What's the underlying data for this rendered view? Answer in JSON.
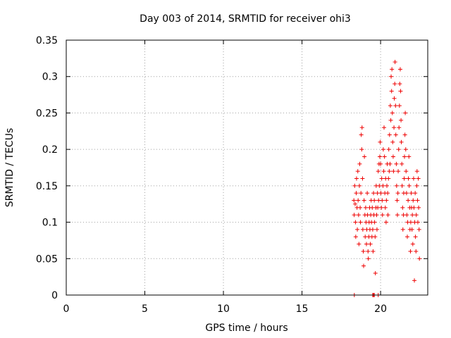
{
  "chart_data": {
    "type": "scatter",
    "title": "Day 003 of 2014, SRMTID for receiver ohi3",
    "xlabel": "GPS time / hours",
    "ylabel": "SRMTID / TECUs",
    "xlim": [
      0,
      23
    ],
    "ylim": [
      0,
      0.35
    ],
    "xticks": [
      0,
      5,
      10,
      15,
      20
    ],
    "xtick_labels": [
      "0",
      "5",
      "10",
      "15",
      "20"
    ],
    "yticks": [
      0,
      0.05,
      0.1,
      0.15,
      0.2,
      0.25,
      0.3,
      0.35
    ],
    "ytick_labels": [
      "0",
      "0.05",
      "0.1",
      "0.15",
      "0.2",
      "0.25",
      "0.3",
      "0.35"
    ],
    "grid": true,
    "marker": "+",
    "color": "#ee0000",
    "series": [
      {
        "name": "SRMTID",
        "points": [
          [
            18.3,
            0.13
          ],
          [
            18.32,
            0.11
          ],
          [
            18.35,
            0.15
          ],
          [
            18.38,
            0.125
          ],
          [
            18.4,
            0.1
          ],
          [
            18.42,
            0.08
          ],
          [
            18.45,
            0.14
          ],
          [
            18.47,
            0.16
          ],
          [
            18.5,
            0.12
          ],
          [
            18.52,
            0.09
          ],
          [
            18.55,
            0.17
          ],
          [
            18.57,
            0.13
          ],
          [
            18.6,
            0.11
          ],
          [
            18.62,
            0.07
          ],
          [
            18.65,
            0.15
          ],
          [
            18.67,
            0.18
          ],
          [
            18.7,
            0.12
          ],
          [
            18.72,
            0.1
          ],
          [
            18.75,
            0.14
          ],
          [
            18.77,
            0.22
          ],
          [
            18.8,
            0.2
          ],
          [
            18.82,
            0.23
          ],
          [
            18.85,
            0.16
          ],
          [
            18.87,
            0.09
          ],
          [
            18.9,
            0.06
          ],
          [
            18.92,
            0.04
          ],
          [
            18.95,
            0.13
          ],
          [
            18.97,
            0.19
          ],
          [
            19.0,
            0.11
          ],
          [
            19.02,
            0.08
          ],
          [
            19.05,
            0.12
          ],
          [
            19.07,
            0.1
          ],
          [
            19.1,
            0.07
          ],
          [
            19.12,
            0.09
          ],
          [
            19.15,
            0.14
          ],
          [
            19.17,
            0.11
          ],
          [
            19.2,
            0.06
          ],
          [
            19.22,
            0.05
          ],
          [
            19.25,
            0.08
          ],
          [
            19.27,
            0.1
          ],
          [
            19.3,
            0.12
          ],
          [
            19.32,
            0.09
          ],
          [
            19.35,
            0.07
          ],
          [
            19.37,
            0.11
          ],
          [
            19.4,
            0.13
          ],
          [
            19.42,
            0.1
          ],
          [
            19.45,
            0.08
          ],
          [
            19.47,
            0.12
          ],
          [
            19.5,
            0.09
          ],
          [
            19.52,
            0.06
          ],
          [
            19.55,
            0.14
          ],
          [
            19.57,
            0.11
          ],
          [
            19.6,
            0.13
          ],
          [
            19.62,
            0.1
          ],
          [
            19.65,
            0.08
          ],
          [
            19.67,
            0.03
          ],
          [
            19.7,
            0.12
          ],
          [
            19.72,
            0.15
          ],
          [
            19.75,
            0.11
          ],
          [
            19.77,
            0.09
          ],
          [
            19.8,
            0.14
          ],
          [
            19.82,
            0.12
          ],
          [
            19.85,
            0.17
          ],
          [
            19.87,
            0.13
          ],
          [
            19.9,
            0.18
          ],
          [
            19.92,
            0.15
          ],
          [
            19.95,
            0.19
          ],
          [
            19.97,
            0.21
          ],
          [
            20.0,
            0.18
          ],
          [
            20.02,
            0.14
          ],
          [
            20.05,
            0.12
          ],
          [
            20.07,
            0.16
          ],
          [
            20.1,
            0.13
          ],
          [
            20.12,
            0.11
          ],
          [
            20.15,
            0.15
          ],
          [
            20.17,
            0.2
          ],
          [
            20.2,
            0.17
          ],
          [
            20.22,
            0.23
          ],
          [
            20.25,
            0.19
          ],
          [
            20.27,
            0.14
          ],
          [
            20.3,
            0.12
          ],
          [
            20.32,
            0.16
          ],
          [
            20.35,
            0.1
          ],
          [
            20.37,
            0.13
          ],
          [
            20.4,
            0.15
          ],
          [
            20.42,
            0.18
          ],
          [
            20.45,
            0.14
          ],
          [
            20.47,
            0.11
          ],
          [
            20.5,
            0.16
          ],
          [
            20.52,
            0.2
          ],
          [
            20.55,
            0.17
          ],
          [
            20.57,
            0.22
          ],
          [
            20.6,
            0.18
          ],
          [
            20.62,
            0.26
          ],
          [
            20.65,
            0.24
          ],
          [
            20.67,
            0.3
          ],
          [
            20.7,
            0.28
          ],
          [
            20.72,
            0.31
          ],
          [
            20.75,
            0.25
          ],
          [
            20.77,
            0.21
          ],
          [
            20.8,
            0.19
          ],
          [
            20.82,
            0.17
          ],
          [
            20.85,
            0.23
          ],
          [
            20.87,
            0.27
          ],
          [
            20.9,
            0.29
          ],
          [
            20.92,
            0.32
          ],
          [
            20.95,
            0.26
          ],
          [
            20.97,
            0.22
          ],
          [
            21.0,
            0.18
          ],
          [
            21.02,
            0.15
          ],
          [
            21.05,
            0.13
          ],
          [
            21.07,
            0.11
          ],
          [
            21.1,
            0.14
          ],
          [
            21.12,
            0.17
          ],
          [
            21.15,
            0.2
          ],
          [
            21.17,
            0.23
          ],
          [
            21.2,
            0.26
          ],
          [
            21.22,
            0.29
          ],
          [
            21.25,
            0.31
          ],
          [
            21.27,
            0.28
          ],
          [
            21.3,
            0.24
          ],
          [
            21.32,
            0.21
          ],
          [
            21.35,
            0.18
          ],
          [
            21.37,
            0.15
          ],
          [
            21.4,
            0.12
          ],
          [
            21.42,
            0.09
          ],
          [
            21.45,
            0.11
          ],
          [
            21.47,
            0.14
          ],
          [
            21.5,
            0.16
          ],
          [
            21.52,
            0.19
          ],
          [
            21.55,
            0.22
          ],
          [
            21.57,
            0.25
          ],
          [
            21.6,
            0.2
          ],
          [
            21.62,
            0.17
          ],
          [
            21.65,
            0.14
          ],
          [
            21.67,
            0.11
          ],
          [
            21.7,
            0.08
          ],
          [
            21.72,
            0.1
          ],
          [
            21.75,
            0.13
          ],
          [
            21.77,
            0.16
          ],
          [
            21.8,
            0.19
          ],
          [
            21.82,
            0.15
          ],
          [
            21.85,
            0.12
          ],
          [
            21.87,
            0.09
          ],
          [
            21.9,
            0.06
          ],
          [
            21.92,
            0.1
          ],
          [
            21.95,
            0.14
          ],
          [
            21.97,
            0.12
          ],
          [
            22.0,
            0.09
          ],
          [
            22.02,
            0.11
          ],
          [
            22.05,
            0.07
          ],
          [
            22.07,
            0.13
          ],
          [
            22.1,
            0.16
          ],
          [
            22.12,
            0.12
          ],
          [
            22.15,
            0.02
          ],
          [
            22.17,
            0.1
          ],
          [
            22.2,
            0.14
          ],
          [
            22.22,
            0.08
          ],
          [
            22.25,
            0.06
          ],
          [
            22.27,
            0.11
          ],
          [
            22.3,
            0.15
          ],
          [
            22.32,
            0.17
          ],
          [
            22.35,
            0.13
          ],
          [
            22.37,
            0.1
          ],
          [
            22.4,
            0.16
          ],
          [
            22.42,
            0.12
          ],
          [
            22.45,
            0.09
          ],
          [
            22.47,
            0.05
          ],
          [
            18.33,
            0.0
          ],
          [
            19.5,
            0.0
          ],
          [
            19.55,
            0.0
          ],
          [
            19.6,
            0.0
          ],
          [
            19.85,
            0.0
          ]
        ]
      }
    ]
  }
}
